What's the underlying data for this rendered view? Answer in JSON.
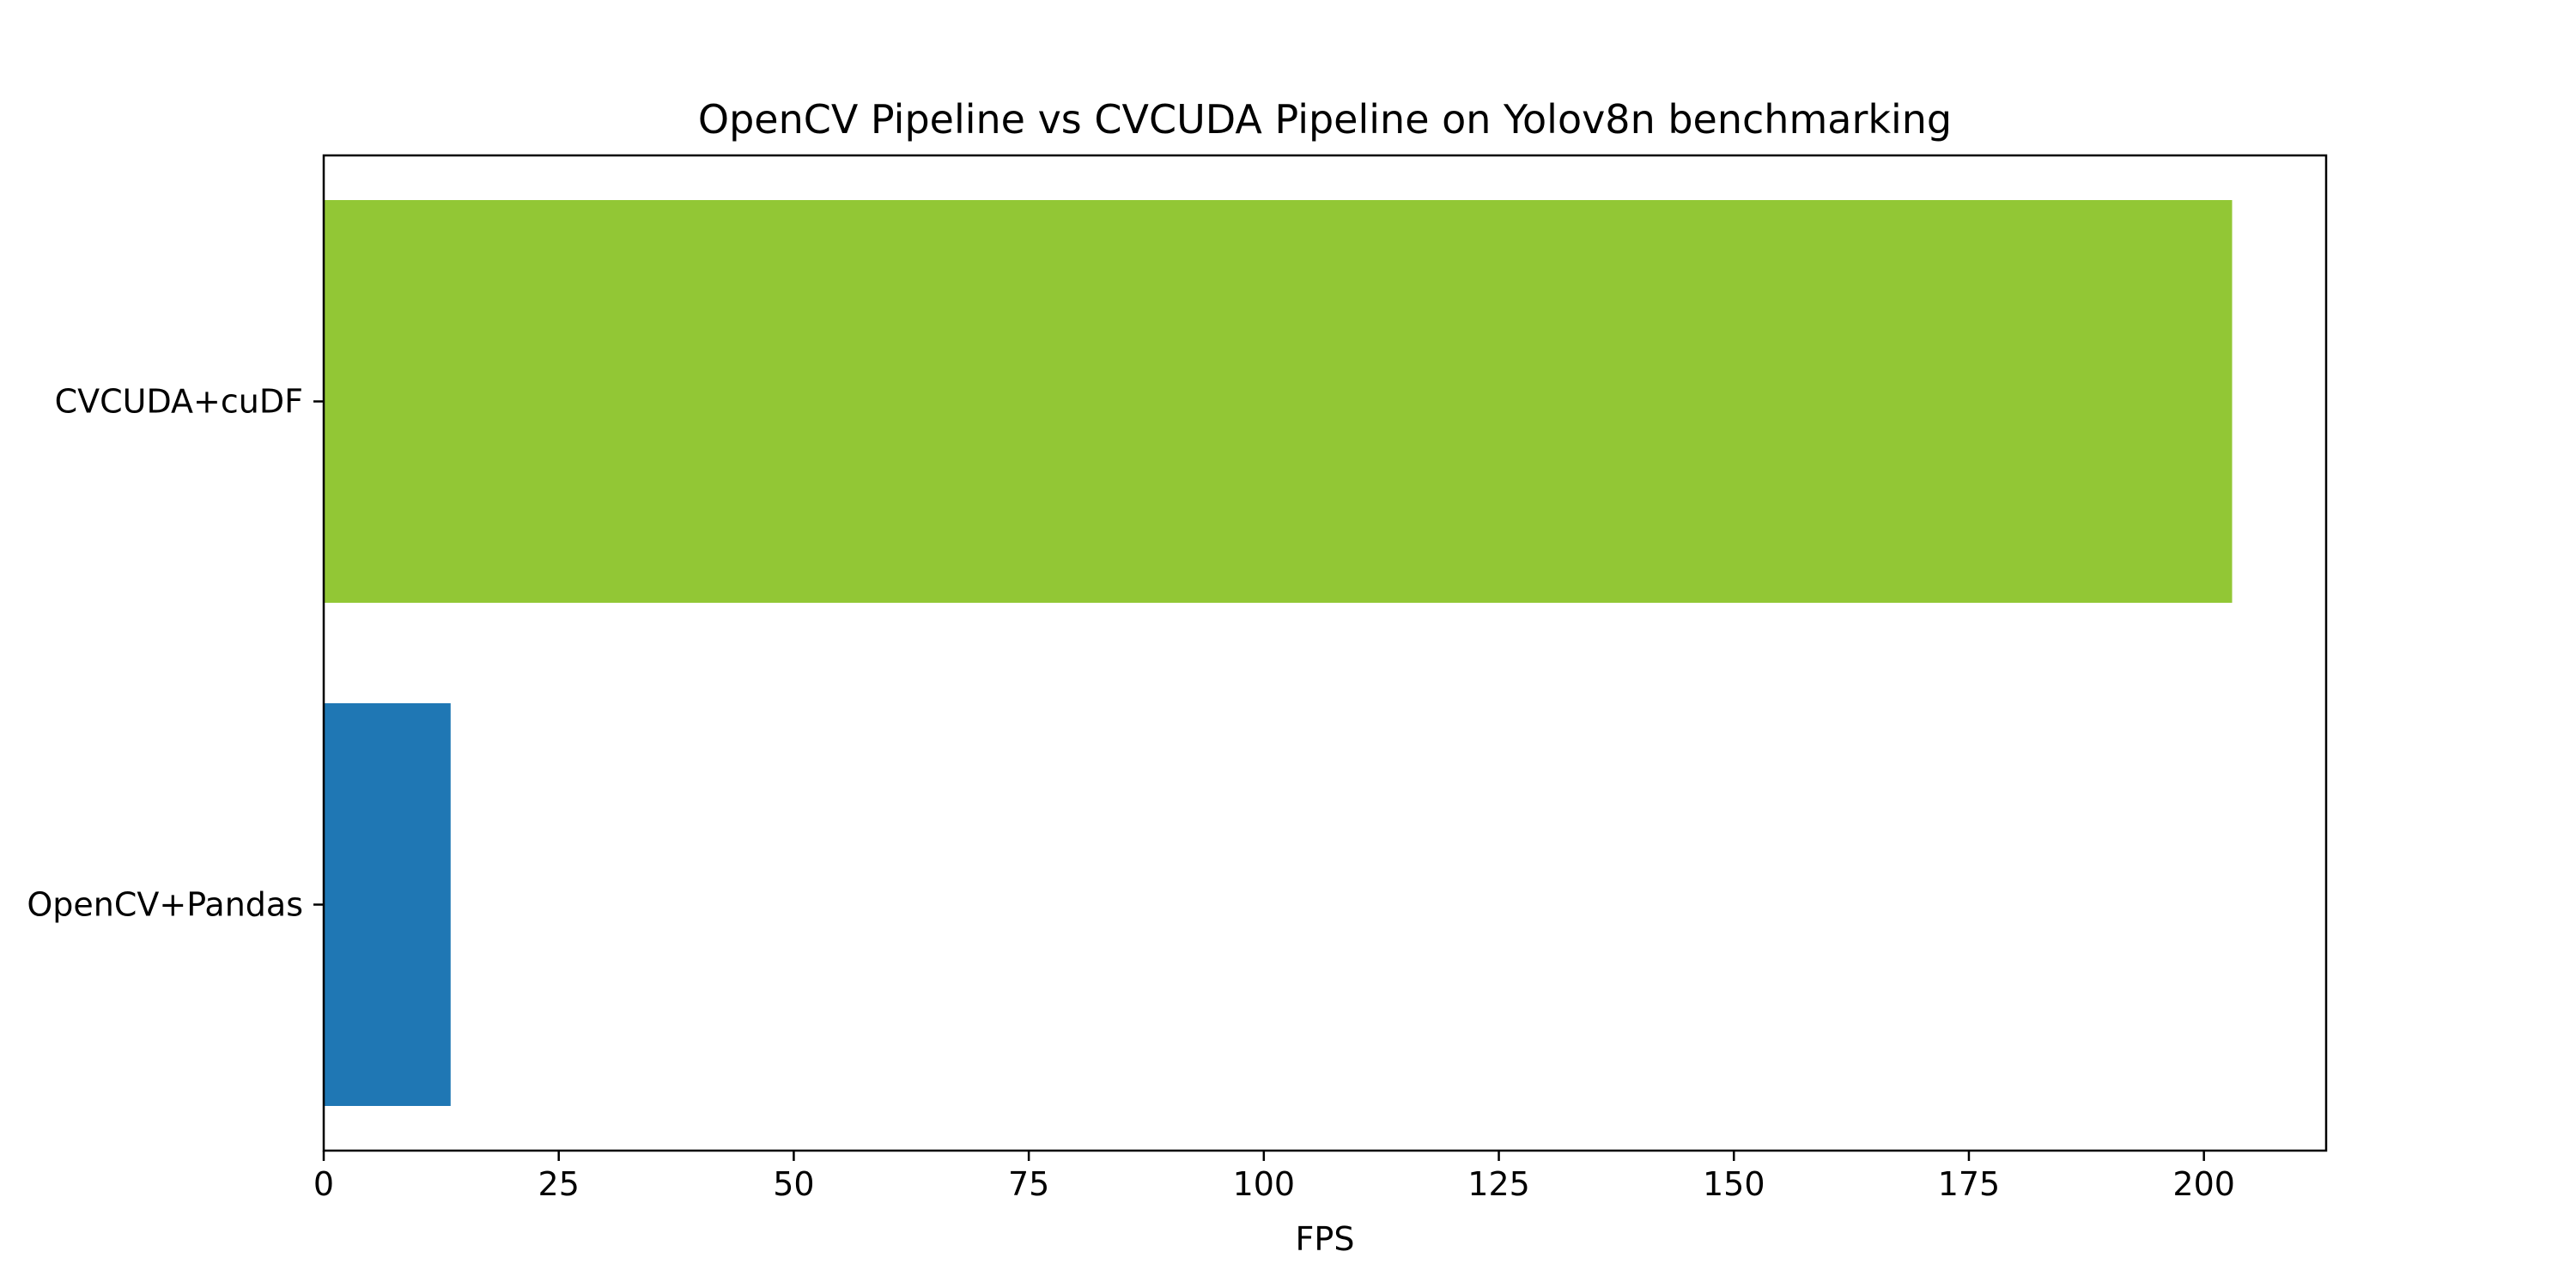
{
  "chart_data": {
    "type": "bar",
    "orientation": "horizontal",
    "title": "OpenCV Pipeline vs CVCUDA Pipeline on Yolov8n benchmarking",
    "xlabel": "FPS",
    "ylabel": "",
    "categories": [
      "OpenCV+Pandas",
      "CVCUDA+cuDF"
    ],
    "values": [
      13.5,
      203
    ],
    "bar_colors": [
      "#1f77b4",
      "#92c735"
    ],
    "xlim": [
      0,
      213
    ],
    "xticks": [
      0,
      25,
      50,
      75,
      100,
      125,
      150,
      175,
      200
    ],
    "xtick_labels": [
      "0",
      "25",
      "50",
      "75",
      "100",
      "125",
      "150",
      "175",
      "200"
    ],
    "grid": false,
    "legend": "none"
  }
}
